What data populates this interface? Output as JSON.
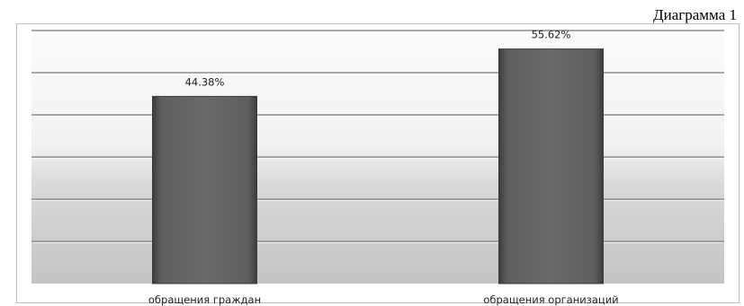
{
  "caption": "Диаграмма 1",
  "chart_data": {
    "type": "bar",
    "categories": [
      "обращения граждан",
      "обращения организаций"
    ],
    "values": [
      44.38,
      55.62
    ],
    "data_labels": [
      "44.38%",
      "55.62%"
    ],
    "title": "",
    "xlabel": "",
    "ylabel": "",
    "ylim": [
      0,
      60
    ],
    "grid": true,
    "legend": "none",
    "colors": {
      "bar": "#666666",
      "bar_edge": "#3a3a3a",
      "gridline": "#8c8c8c",
      "plot_top": "#fafafa",
      "plot_bottom": "#c8c8c8"
    }
  }
}
